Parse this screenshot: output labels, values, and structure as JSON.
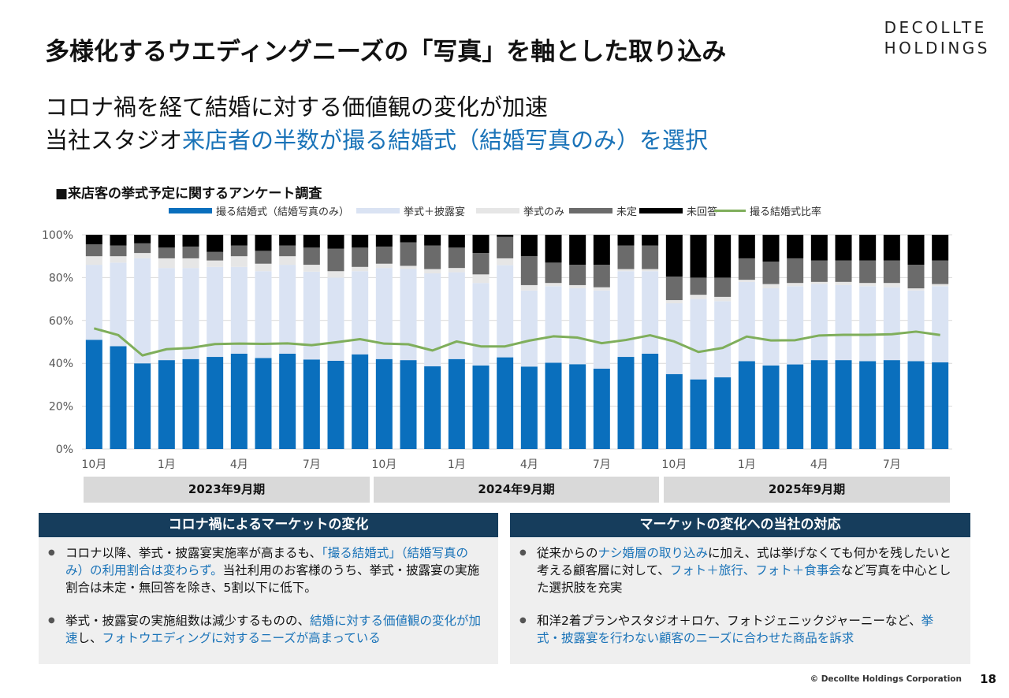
{
  "header": {
    "title": "多様化するウエディングニーズの「写真」を軸とした取り込み",
    "logo_line1": "DECOLLTE",
    "logo_line2": "HOLDINGS"
  },
  "subtitle": {
    "line1": "コロナ禍を経て結婚に対する価値観の変化が加速",
    "line2_plain": "当社スタジオ",
    "line2_accent": "来店者の半数が撮る結婚式（結婚写真のみ）を選択"
  },
  "chart_heading": "■来店客の挙式予定に関するアンケート調査",
  "colors": {
    "photo": "#0a6fbd",
    "ceremony_party": "#dae3f3",
    "ceremony_only": "#e6e6e6",
    "undecided": "#6b6b6b",
    "no_answer": "#000000",
    "ratio_line": "#7fae5b",
    "accent": "#1a73b8",
    "panel_head": "#163d5c"
  },
  "chart_data": {
    "type": "bar",
    "stacked": true,
    "ylim": [
      0,
      100
    ],
    "yticks": [
      "0%",
      "20%",
      "40%",
      "60%",
      "80%",
      "100%"
    ],
    "categories": [
      "10月",
      "",
      "",
      "1月",
      "",
      "",
      "4月",
      "",
      "",
      "7月",
      "",
      "",
      "10月",
      "",
      "",
      "1月",
      "",
      "",
      "4月",
      "",
      "",
      "7月",
      "",
      "",
      "10月",
      "",
      "",
      "1月",
      "",
      "",
      "4月",
      "",
      "",
      "7月",
      "",
      ""
    ],
    "periods": [
      "2023年9月期",
      "2024年9月期",
      "2025年9月期"
    ],
    "series": [
      {
        "name": "撮る結婚式（結婚写真のみ）",
        "key": "photo",
        "values": [
          51,
          48,
          40,
          41.5,
          42,
          43,
          44.5,
          42.5,
          44.5,
          41.8,
          41.2,
          44.2,
          42,
          41.5,
          38.6,
          42,
          39,
          42.8,
          38.5,
          40.3,
          39.6,
          37.5,
          43,
          44.5,
          35,
          32.5,
          33.5,
          41,
          39,
          39.5,
          41.5,
          41.5,
          41,
          41.5,
          41,
          40.5
        ]
      },
      {
        "name": "挙式＋披露宴",
        "key": "ceremony_party",
        "values": [
          35,
          39,
          49,
          43,
          42.5,
          42,
          40.5,
          40.5,
          41.5,
          41,
          38.8,
          38.8,
          42.5,
          42.5,
          43.4,
          40.5,
          38.5,
          43,
          35.5,
          35.7,
          35.4,
          36.5,
          40,
          38.5,
          33,
          37.5,
          35.5,
          37,
          36,
          36.5,
          35.5,
          35,
          35,
          34,
          33,
          35.5
        ]
      },
      {
        "name": "挙式のみ",
        "key": "ceremony_only",
        "values": [
          4,
          3,
          2.5,
          4.5,
          4.5,
          3,
          5,
          3.5,
          4,
          3.2,
          3,
          2,
          2,
          1.5,
          2,
          2,
          4,
          3.2,
          2.5,
          1.5,
          1.5,
          1.5,
          1,
          1,
          1.5,
          2,
          2,
          1,
          2,
          1.5,
          1,
          1.5,
          1.5,
          2,
          1,
          1
        ]
      },
      {
        "name": "未定",
        "key": "undecided",
        "values": [
          5.5,
          5,
          4.5,
          5,
          5.5,
          4,
          5,
          6,
          5,
          8,
          10.5,
          9,
          8,
          11,
          11,
          9.5,
          10,
          10,
          13.5,
          9.5,
          9.5,
          10.5,
          11,
          11,
          11,
          8,
          9,
          10,
          10.5,
          11.5,
          10,
          10,
          10.5,
          10.5,
          11,
          11
        ]
      },
      {
        "name": "未回答",
        "key": "no_answer",
        "values": [
          4.5,
          5,
          4,
          6,
          5.5,
          8,
          5,
          7.5,
          5,
          6,
          6.5,
          6,
          5.5,
          3.5,
          5,
          6,
          8.5,
          1,
          10,
          13,
          14,
          14,
          5,
          5,
          19.5,
          20,
          20,
          11,
          12.5,
          11,
          12,
          12,
          12,
          12,
          14,
          12
        ]
      }
    ],
    "line": {
      "name": "撮る結婚式比率",
      "values": [
        56.3,
        53.2,
        43.7,
        46.6,
        47.2,
        49,
        49.2,
        49.1,
        49.3,
        48.5,
        49.8,
        51.3,
        49.2,
        48.9,
        46,
        50.2,
        47.9,
        47.9,
        50.6,
        52.6,
        52,
        49.4,
        50.9,
        53.1,
        50.2,
        45.3,
        47.2,
        52.5,
        50.7,
        50.8,
        53,
        53.3,
        53.3,
        53.6,
        54.8,
        53.2
      ]
    }
  },
  "panels": {
    "left": {
      "heading": "コロナ禍によるマーケットの変化",
      "b1_a": "コロナ以降、挙式・披露宴実施率が高まるも、",
      "b1_b": "「撮る結婚式」（結婚写真のみ）の利用割合は変わらず。",
      "b1_c": "当社利用のお客様のうち、挙式・披露宴の実施割合は未定・無回答を除き、5割以下に低下。",
      "b2_a": "挙式・披露宴の実施組数は減少するものの、",
      "b2_b": "結婚に対する価値観の変化が加速",
      "b2_c": "し、",
      "b2_d": "フォトウエディングに対するニーズが高まっている"
    },
    "right": {
      "heading": "マーケットの変化への当社の対応",
      "b1_a": "従来からの",
      "b1_b": "ナシ婚層の取り込み",
      "b1_c": "に加え、式は挙げなくても何かを残したいと考える顧客層に対して、",
      "b1_d": "フォト＋旅行、フォト＋食事会",
      "b1_e": "など写真を中心とした選択肢を充実",
      "b2_a": "和洋2着プランやスタジオ＋ロケ、フォトジェニックジャーニーなど、",
      "b2_b": "挙式・披露宴を行わない顧客のニーズに合わせた商品を訴求"
    }
  },
  "footer": {
    "copyright": "© Decollte Holdings Corporation",
    "page": "18"
  }
}
